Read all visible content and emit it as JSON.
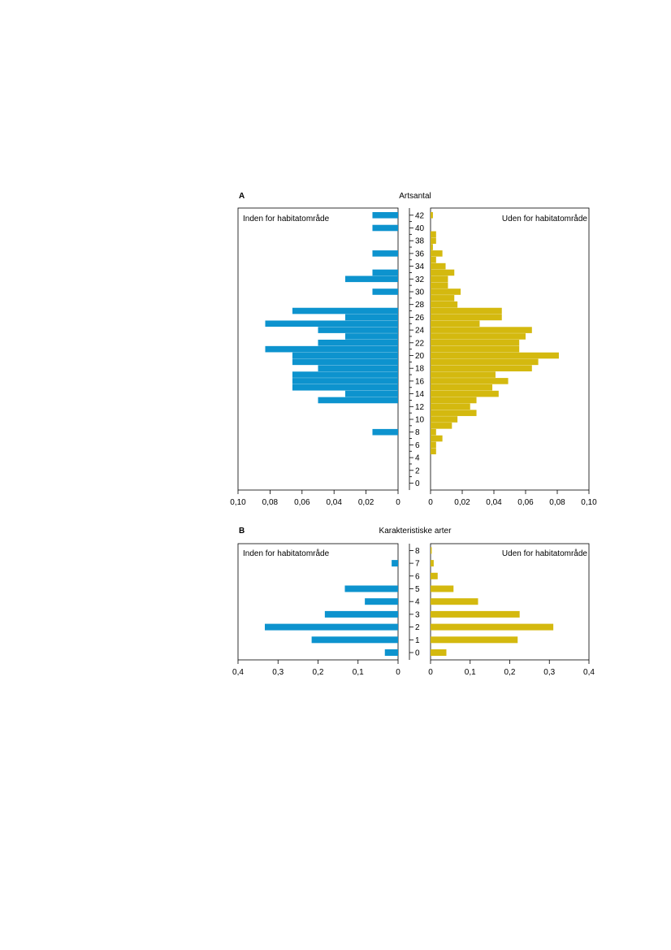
{
  "chart_data": [
    {
      "panel": "A",
      "type": "bar",
      "title": "Artsantal",
      "orientation": "horizontal",
      "layout": "back-to-back",
      "xlim": [
        0,
        0.1
      ],
      "tick_values": [
        0,
        0.02,
        0.04,
        0.06,
        0.08,
        0.1
      ],
      "tick_labels_left": [
        "0",
        "0,02",
        "0,04",
        "0,06",
        "0,08",
        "0,10"
      ],
      "tick_labels_right": [
        "0",
        "0,02",
        "0,04",
        "0,06",
        "0,08",
        "0,10"
      ],
      "categories": [
        0,
        1,
        2,
        3,
        4,
        5,
        6,
        7,
        8,
        9,
        10,
        11,
        12,
        13,
        14,
        15,
        16,
        17,
        18,
        19,
        20,
        21,
        22,
        23,
        24,
        25,
        26,
        27,
        28,
        29,
        30,
        31,
        32,
        33,
        34,
        35,
        36,
        37,
        38,
        39,
        40,
        41,
        42
      ],
      "category_tick_labels": [
        "0",
        "2",
        "4",
        "6",
        "8",
        "10",
        "12",
        "14",
        "16",
        "18",
        "20",
        "22",
        "24",
        "26",
        "28",
        "30",
        "32",
        "34",
        "36",
        "38",
        "40",
        "42"
      ],
      "series": [
        {
          "name": "Inden for habitatområde",
          "side": "left",
          "color": "#0d93ce",
          "values": [
            0,
            0,
            0,
            0,
            0,
            0,
            0,
            0,
            0.016,
            0,
            0,
            0,
            0,
            0.05,
            0.033,
            0.066,
            0.066,
            0.066,
            0.05,
            0.066,
            0.066,
            0.083,
            0.05,
            0.033,
            0.05,
            0.083,
            0.033,
            0.066,
            0,
            0,
            0.016,
            0,
            0.033,
            0.016,
            0,
            0,
            0.016,
            0,
            0,
            0,
            0.016,
            0,
            0.016
          ]
        },
        {
          "name": "Uden for habitatområde",
          "side": "right",
          "color": "#d4b90f",
          "values": [
            0,
            0,
            0,
            0,
            0,
            0.0035,
            0.0035,
            0.0075,
            0.0035,
            0.0135,
            0.017,
            0.029,
            0.025,
            0.029,
            0.043,
            0.039,
            0.049,
            0.041,
            0.064,
            0.068,
            0.081,
            0.056,
            0.056,
            0.06,
            0.064,
            0.031,
            0.045,
            0.045,
            0.017,
            0.015,
            0.019,
            0.011,
            0.011,
            0.015,
            0.0095,
            0.0035,
            0.0075,
            0.0015,
            0.0035,
            0.0035,
            0,
            0,
            0.0015
          ]
        }
      ]
    },
    {
      "panel": "B",
      "type": "bar",
      "title": "Karakteristiske arter",
      "orientation": "horizontal",
      "layout": "back-to-back",
      "xlim": [
        0,
        0.4
      ],
      "tick_values": [
        0,
        0.1,
        0.2,
        0.3,
        0.4
      ],
      "tick_labels_left": [
        "0",
        "0,1",
        "0,2",
        "0,3",
        "0,4"
      ],
      "tick_labels_right": [
        "0",
        "0,1",
        "0,2",
        "0,3",
        "0,4"
      ],
      "categories": [
        0,
        1,
        2,
        3,
        4,
        5,
        6,
        7,
        8
      ],
      "category_tick_labels": [
        "0",
        "1",
        "2",
        "3",
        "4",
        "5",
        "6",
        "7",
        "8"
      ],
      "series": [
        {
          "name": "Inden for habitatområde",
          "side": "left",
          "color": "#0d93ce",
          "values": [
            0.033,
            0.216,
            0.333,
            0.183,
            0.083,
            0.133,
            0,
            0.016,
            0
          ]
        },
        {
          "name": "Uden for habitatområde",
          "side": "right",
          "color": "#d4b90f",
          "values": [
            0.04,
            0.22,
            0.31,
            0.225,
            0.12,
            0.058,
            0.018,
            0.008,
            0.003
          ]
        }
      ]
    }
  ]
}
